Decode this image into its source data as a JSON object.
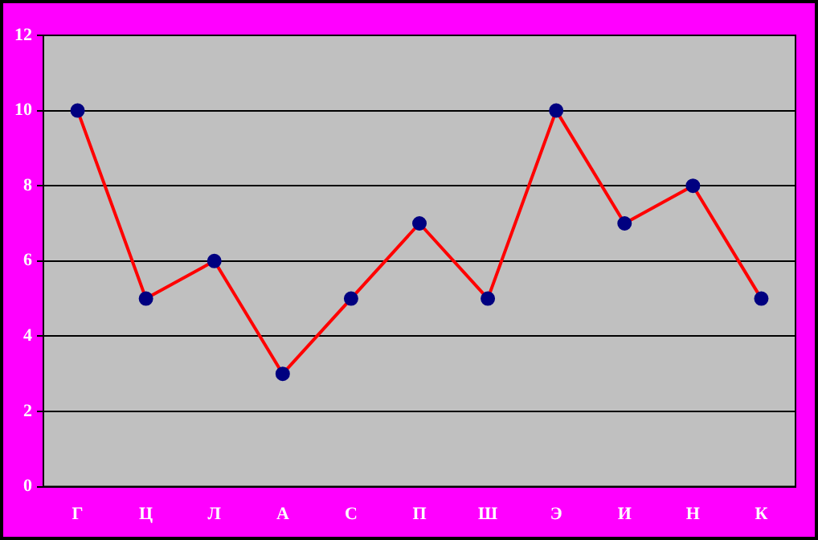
{
  "chart_data": {
    "type": "line",
    "categories": [
      "Г",
      "Ц",
      "Л",
      "А",
      "С",
      "П",
      "Ш",
      "Э",
      "И",
      "Н",
      "К"
    ],
    "series": [
      {
        "color": "#ff0000",
        "values": [
          10,
          5,
          6,
          3,
          5,
          7,
          5,
          10,
          7,
          8,
          5
        ]
      }
    ],
    "ylim": [
      0,
      12
    ],
    "yticks": [
      0,
      2,
      4,
      6,
      8,
      10,
      12
    ],
    "grid": "y",
    "marker": "circle",
    "line_style": "solid",
    "legend": false
  }
}
